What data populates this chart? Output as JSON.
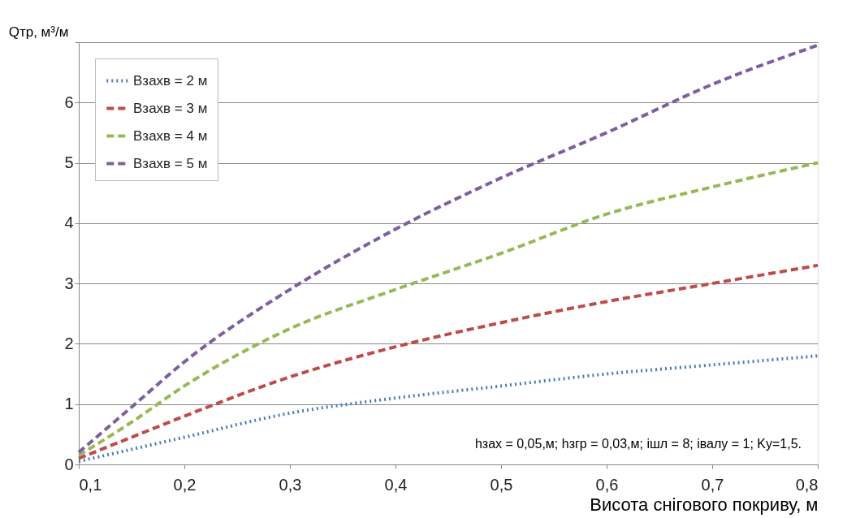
{
  "chart_data": {
    "type": "line",
    "xlabel": "Висота снігового покриву,  м",
    "ylabel": "Qтр, м³/м",
    "x": [
      0.1,
      0.15,
      0.2,
      0.3,
      0.4,
      0.5,
      0.6,
      0.7,
      0.8
    ],
    "series": [
      {
        "name": "Bзахв = 2 м",
        "color": "#4a7ebb",
        "line_style": "dotted",
        "values": [
          0.05,
          0.25,
          0.45,
          0.85,
          1.1,
          1.3,
          1.5,
          1.65,
          1.8
        ]
      },
      {
        "name": "Bзахв = 3 м",
        "color": "#be4b48",
        "line_style": "dashed",
        "values": [
          0.1,
          0.45,
          0.8,
          1.45,
          1.95,
          2.35,
          2.7,
          3.0,
          3.3
        ]
      },
      {
        "name": "Bзахв = 4 м",
        "color": "#98b954",
        "line_style": "dashed",
        "values": [
          0.15,
          0.7,
          1.3,
          2.25,
          2.9,
          3.5,
          4.15,
          4.6,
          5.0
        ]
      },
      {
        "name": "Bзахв = 5 м",
        "color": "#7d5fa0",
        "line_style": "dashed",
        "values": [
          0.2,
          0.95,
          1.7,
          2.9,
          3.9,
          4.75,
          5.5,
          6.3,
          6.95
        ]
      }
    ],
    "xlim": [
      0.1,
      0.8
    ],
    "xticks": [
      {
        "value": 0.1,
        "label": "0,1"
      },
      {
        "value": 0.2,
        "label": "0,2"
      },
      {
        "value": 0.3,
        "label": "0,3"
      },
      {
        "value": 0.4,
        "label": "0,4"
      },
      {
        "value": 0.5,
        "label": "0,5"
      },
      {
        "value": 0.6,
        "label": "0,6"
      },
      {
        "value": 0.7,
        "label": "0,7"
      },
      {
        "value": 0.8,
        "label": "0,8"
      }
    ],
    "ylim": [
      0,
      7
    ],
    "yticks": [
      0,
      1,
      2,
      3,
      4,
      5,
      6,
      {
        "value": 7,
        "label": null
      }
    ],
    "grid": "y",
    "legend": "top left",
    "marker": "none",
    "annotations": [
      "hзах = 0,05,м; hзгр = 0,03,м; iшл = 8; iвалу = 1; Kу=1,5."
    ]
  }
}
